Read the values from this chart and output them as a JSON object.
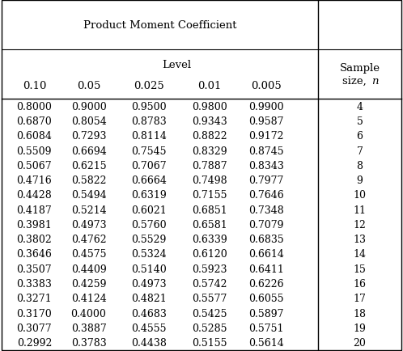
{
  "title": "Product Moment Coefficient",
  "subtitle": "Level",
  "col_headers": [
    "0.10",
    "0.05",
    "0.025",
    "0.01",
    "0.005"
  ],
  "sample_sizes": [
    4,
    5,
    6,
    7,
    8,
    9,
    10,
    11,
    12,
    13,
    14,
    15,
    16,
    17,
    18,
    19,
    20
  ],
  "data": [
    [
      "0.8000",
      "0.9000",
      "0.9500",
      "0.9800",
      "0.9900"
    ],
    [
      "0.6870",
      "0.8054",
      "0.8783",
      "0.9343",
      "0.9587"
    ],
    [
      "0.6084",
      "0.7293",
      "0.8114",
      "0.8822",
      "0.9172"
    ],
    [
      "0.5509",
      "0.6694",
      "0.7545",
      "0.8329",
      "0.8745"
    ],
    [
      "0.5067",
      "0.6215",
      "0.7067",
      "0.7887",
      "0.8343"
    ],
    [
      "0.4716",
      "0.5822",
      "0.6664",
      "0.7498",
      "0.7977"
    ],
    [
      "0.4428",
      "0.5494",
      "0.6319",
      "0.7155",
      "0.7646"
    ],
    [
      "0.4187",
      "0.5214",
      "0.6021",
      "0.6851",
      "0.7348"
    ],
    [
      "0.3981",
      "0.4973",
      "0.5760",
      "0.6581",
      "0.7079"
    ],
    [
      "0.3802",
      "0.4762",
      "0.5529",
      "0.6339",
      "0.6835"
    ],
    [
      "0.3646",
      "0.4575",
      "0.5324",
      "0.6120",
      "0.6614"
    ],
    [
      "0.3507",
      "0.4409",
      "0.5140",
      "0.5923",
      "0.6411"
    ],
    [
      "0.3383",
      "0.4259",
      "0.4973",
      "0.5742",
      "0.6226"
    ],
    [
      "0.3271",
      "0.4124",
      "0.4821",
      "0.5577",
      "0.6055"
    ],
    [
      "0.3170",
      "0.4000",
      "0.4683",
      "0.5425",
      "0.5897"
    ],
    [
      "0.3077",
      "0.3887",
      "0.4555",
      "0.5285",
      "0.5751"
    ],
    [
      "0.2992",
      "0.3783",
      "0.4438",
      "0.5155",
      "0.5614"
    ]
  ],
  "bg_color": "#ffffff",
  "text_color": "#000000",
  "line_color": "#000000",
  "font_size": 9.0,
  "header_font_size": 9.5
}
